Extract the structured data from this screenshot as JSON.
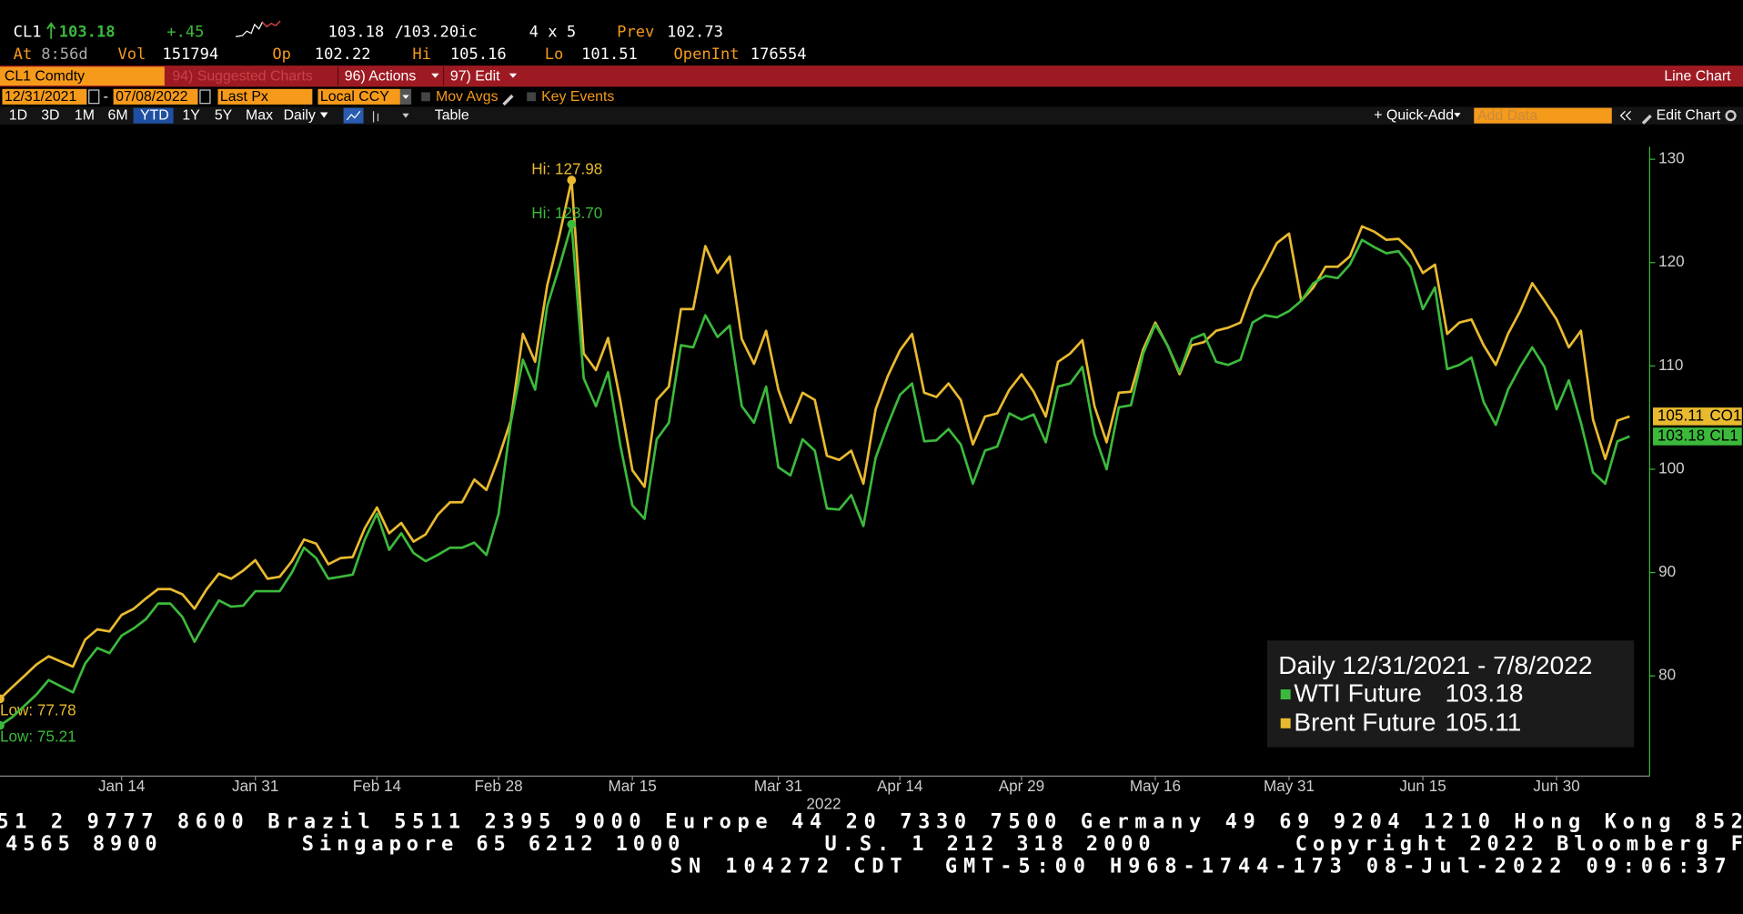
{
  "header": {
    "ticker": "CL1",
    "last": "103.18",
    "change": "+.45",
    "bid": "103.18",
    "separator": "/",
    "ask": "103.20ic",
    "size": "4 x 5",
    "prev_label": "Prev",
    "prev": "102.73",
    "time_label": "At",
    "time": "8:56d",
    "vol_label": "Vol",
    "vol": "151794",
    "open_label": "Op",
    "open": "102.22",
    "high_label": "Hi",
    "high": "105.16",
    "low_label": "Lo",
    "low": "101.51",
    "oi_label": "OpenInt",
    "oi": "176554"
  },
  "menu": {
    "security": "CL1 Comdty",
    "suggested": "94) Suggested Charts",
    "actions": "96) Actions",
    "edit": "97) Edit",
    "chart_type": "Line Chart"
  },
  "controls": {
    "start": "12/31/2021",
    "dash": "-",
    "end": "07/08/2022",
    "field": "Last Px",
    "currency": "Local CCY",
    "mov_avgs": "Mov Avgs",
    "key_events": "Key Events"
  },
  "toolbar": {
    "periods": [
      "1D",
      "3D",
      "1M",
      "6M",
      "YTD",
      "1Y",
      "5Y",
      "Max"
    ],
    "active_period": "YTD",
    "frequency": "Daily",
    "table": "Table",
    "quick_add": "+ Quick-Add",
    "add_data": "Add Data",
    "edit_chart": "Edit Chart"
  },
  "footer": [
    "51 2 9777 8600 Brazil 5511 2395 9000 Europe 44 20 7330 7500 Germany 49 69 9204 1210 Hong Kong 852",
    "4565 8900        Singapore 65 6212 1000        U.S. 1 212 318 2000        Copyright 2022 Bloomberg F",
    "SN 104272 CDT  GMT-5:00 H968-1744-173 08-Jul-2022 09:06:37"
  ],
  "chart_data": {
    "type": "line",
    "legend_title": "Daily 12/31/2021 - 7/8/2022",
    "xlabel": "2022",
    "legend": "lower right",
    "y_axis_side": "right",
    "categories": [
      "2021-12-31",
      "2022-01-03",
      "2022-01-04",
      "2022-01-05",
      "2022-01-06",
      "2022-01-07",
      "2022-01-10",
      "2022-01-11",
      "2022-01-12",
      "2022-01-13",
      "2022-01-14",
      "2022-01-17",
      "2022-01-18",
      "2022-01-19",
      "2022-01-20",
      "2022-01-21",
      "2022-01-24",
      "2022-01-25",
      "2022-01-26",
      "2022-01-27",
      "2022-01-28",
      "2022-01-31",
      "2022-02-01",
      "2022-02-02",
      "2022-02-03",
      "2022-02-04",
      "2022-02-07",
      "2022-02-08",
      "2022-02-09",
      "2022-02-10",
      "2022-02-11",
      "2022-02-14",
      "2022-02-15",
      "2022-02-16",
      "2022-02-17",
      "2022-02-18",
      "2022-02-21",
      "2022-02-22",
      "2022-02-23",
      "2022-02-24",
      "2022-02-25",
      "2022-02-28",
      "2022-03-01",
      "2022-03-02",
      "2022-03-03",
      "2022-03-04",
      "2022-03-07",
      "2022-03-08",
      "2022-03-09",
      "2022-03-10",
      "2022-03-11",
      "2022-03-14",
      "2022-03-15",
      "2022-03-16",
      "2022-03-17",
      "2022-03-18",
      "2022-03-21",
      "2022-03-22",
      "2022-03-23",
      "2022-03-24",
      "2022-03-25",
      "2022-03-28",
      "2022-03-29",
      "2022-03-30",
      "2022-03-31",
      "2022-04-01",
      "2022-04-04",
      "2022-04-05",
      "2022-04-06",
      "2022-04-07",
      "2022-04-08",
      "2022-04-11",
      "2022-04-12",
      "2022-04-13",
      "2022-04-14",
      "2022-04-18",
      "2022-04-19",
      "2022-04-20",
      "2022-04-21",
      "2022-04-22",
      "2022-04-25",
      "2022-04-26",
      "2022-04-27",
      "2022-04-28",
      "2022-04-29",
      "2022-05-02",
      "2022-05-03",
      "2022-05-04",
      "2022-05-05",
      "2022-05-06",
      "2022-05-09",
      "2022-05-10",
      "2022-05-11",
      "2022-05-12",
      "2022-05-13",
      "2022-05-16",
      "2022-05-17",
      "2022-05-18",
      "2022-05-19",
      "2022-05-20",
      "2022-05-23",
      "2022-05-24",
      "2022-05-25",
      "2022-05-26",
      "2022-05-27",
      "2022-05-30",
      "2022-05-31",
      "2022-06-01",
      "2022-06-02",
      "2022-06-03",
      "2022-06-06",
      "2022-06-07",
      "2022-06-08",
      "2022-06-09",
      "2022-06-10",
      "2022-06-13",
      "2022-06-14",
      "2022-06-15",
      "2022-06-16",
      "2022-06-17",
      "2022-06-20",
      "2022-06-21",
      "2022-06-22",
      "2022-06-23",
      "2022-06-24",
      "2022-06-27",
      "2022-06-28",
      "2022-06-29",
      "2022-06-30",
      "2022-07-01",
      "2022-07-04",
      "2022-07-05",
      "2022-07-06",
      "2022-07-07",
      "2022-07-08"
    ],
    "series": [
      {
        "name": "WTI Future",
        "tag": "CL1",
        "color": "#3cb93c",
        "hi_label": "Hi: 123.70",
        "low_label": "Low: 75.21",
        "values": [
          75.21,
          76.0,
          77.1,
          78.2,
          79.6,
          79.0,
          78.4,
          81.2,
          82.7,
          82.2,
          83.9,
          84.6,
          85.5,
          87.0,
          87.0,
          85.7,
          83.3,
          85.4,
          87.3,
          86.7,
          86.8,
          88.2,
          88.2,
          88.2,
          90.0,
          92.4,
          91.4,
          89.4,
          89.6,
          89.8,
          93.2,
          95.7,
          92.2,
          93.8,
          91.9,
          91.1,
          91.7,
          92.4,
          92.4,
          92.9,
          91.7,
          95.7,
          104.5,
          110.6,
          107.7,
          115.8,
          119.6,
          123.7,
          108.8,
          106.1,
          109.4,
          102.4,
          96.5,
          95.2,
          102.9,
          104.5,
          112.0,
          111.8,
          114.9,
          112.8,
          113.9,
          106.1,
          104.5,
          108.0,
          100.2,
          99.4,
          102.9,
          101.8,
          96.2,
          96.1,
          97.5,
          94.5,
          101.1,
          104.3,
          107.2,
          108.3,
          102.7,
          102.8,
          103.9,
          102.4,
          98.6,
          101.8,
          102.2,
          105.4,
          104.8,
          105.3,
          102.6,
          108.0,
          108.3,
          109.9,
          103.4,
          100.0,
          106.0,
          106.2,
          111.2,
          114.0,
          112.0,
          109.4,
          112.6,
          113.1,
          110.4,
          110.1,
          110.6,
          114.2,
          114.9,
          114.7,
          115.3,
          116.3,
          118.0,
          118.7,
          118.5,
          119.8,
          122.2,
          121.5,
          120.9,
          121.1,
          119.6,
          115.5,
          117.6,
          109.7,
          110.1,
          110.8,
          106.5,
          104.3,
          107.7,
          109.9,
          111.8,
          109.9,
          105.8,
          108.6,
          104.5,
          99.7,
          98.6,
          102.7,
          103.18
        ]
      },
      {
        "name": "Brent Future",
        "tag": "CO1",
        "color": "#e9ba2f",
        "hi_label": "Hi: 127.98",
        "low_label": "Low: 77.78",
        "values": [
          77.78,
          78.9,
          80.0,
          81.1,
          81.9,
          81.4,
          80.9,
          83.5,
          84.5,
          84.3,
          85.9,
          86.5,
          87.5,
          88.4,
          88.4,
          87.9,
          86.5,
          88.4,
          89.9,
          89.4,
          90.2,
          91.2,
          89.4,
          89.6,
          91.1,
          93.2,
          92.8,
          90.8,
          91.4,
          91.5,
          94.3,
          96.3,
          93.8,
          94.8,
          93.0,
          93.7,
          95.6,
          96.8,
          96.8,
          99.0,
          98.0,
          101.1,
          104.7,
          113.1,
          110.4,
          117.8,
          122.6,
          127.98,
          111.2,
          109.6,
          112.7,
          106.7,
          99.9,
          98.3,
          106.7,
          108.0,
          115.5,
          115.5,
          121.6,
          119.0,
          120.6,
          112.6,
          110.2,
          113.4,
          107.7,
          104.5,
          107.4,
          106.7,
          101.3,
          100.9,
          101.8,
          98.6,
          105.8,
          109.0,
          111.5,
          113.1,
          107.4,
          107.0,
          108.3,
          106.7,
          102.4,
          105.1,
          105.4,
          107.7,
          109.2,
          107.5,
          105.1,
          110.4,
          111.2,
          112.5,
          106.1,
          102.6,
          107.4,
          107.5,
          111.6,
          114.2,
          112.0,
          109.2,
          112.0,
          112.3,
          113.4,
          113.7,
          114.2,
          117.4,
          119.6,
          121.9,
          122.8,
          116.3,
          117.6,
          119.6,
          119.6,
          120.6,
          123.5,
          123.0,
          122.2,
          122.3,
          121.2,
          119.0,
          119.8,
          113.1,
          114.2,
          114.5,
          112.0,
          110.1,
          113.1,
          115.3,
          118.0,
          116.3,
          114.5,
          111.8,
          113.4,
          104.8,
          101.0,
          104.7,
          105.11
        ]
      }
    ],
    "ylim": [
      70.3,
      132.5
    ],
    "yticks": [
      80,
      90,
      100,
      110,
      120,
      130
    ],
    "xticks": [
      {
        "value": "2022-01-14",
        "label": "Jan 14"
      },
      {
        "value": "2022-01-31",
        "label": "Jan 31"
      },
      {
        "value": "2022-02-14",
        "label": "Feb 14"
      },
      {
        "value": "2022-02-28",
        "label": "Feb 28"
      },
      {
        "value": "2022-03-15",
        "label": "Mar 15"
      },
      {
        "value": "2022-03-31",
        "label": "Mar 31"
      },
      {
        "value": "2022-04-14",
        "label": "Apr 14"
      },
      {
        "value": "2022-04-29",
        "label": "Apr 29"
      },
      {
        "value": "2022-05-16",
        "label": "May 16"
      },
      {
        "value": "2022-05-31",
        "label": "May 31"
      },
      {
        "value": "2022-06-15",
        "label": "Jun 15"
      },
      {
        "value": "2022-06-30",
        "label": "Jun 30"
      }
    ]
  }
}
